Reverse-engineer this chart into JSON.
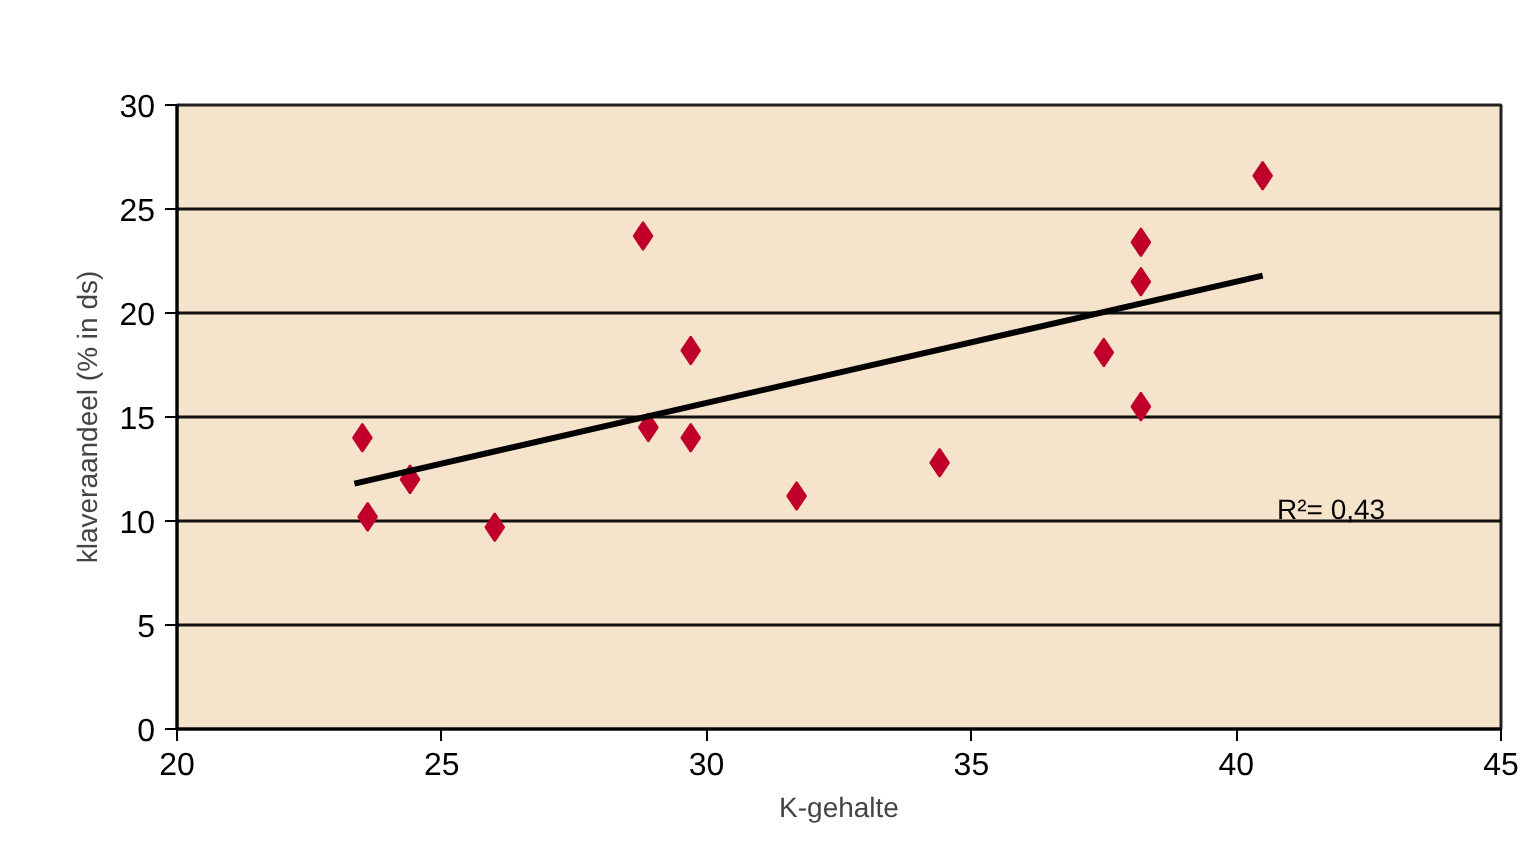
{
  "chart_data": {
    "type": "scatter",
    "xlabel": "K-gehalte",
    "ylabel": "klaveraandeel (% in ds)",
    "xlim": [
      20,
      45
    ],
    "xticks": [
      20,
      25,
      30,
      35,
      40,
      45
    ],
    "ylim": [
      0,
      30
    ],
    "yticks": [
      0,
      5,
      10,
      15,
      20,
      25,
      30
    ],
    "grid": "y",
    "series": [
      {
        "marker": "diamond",
        "color": "#c0002a",
        "x": [
          23.5,
          23.6,
          24.4,
          26.0,
          28.8,
          28.9,
          29.7,
          29.7,
          31.7,
          34.4,
          37.5,
          38.2,
          38.2,
          38.2,
          40.5
        ],
        "values": [
          14.0,
          10.2,
          12.0,
          9.7,
          23.7,
          14.5,
          18.2,
          14.0,
          11.2,
          12.8,
          18.1,
          23.4,
          21.5,
          15.5,
          26.6
        ]
      },
      {
        "type": "line",
        "color": "#000000",
        "x": [
          23.35,
          40.5
        ],
        "values": [
          11.8,
          21.8
        ]
      }
    ],
    "annotations": [
      "R²= 0,43"
    ]
  }
}
